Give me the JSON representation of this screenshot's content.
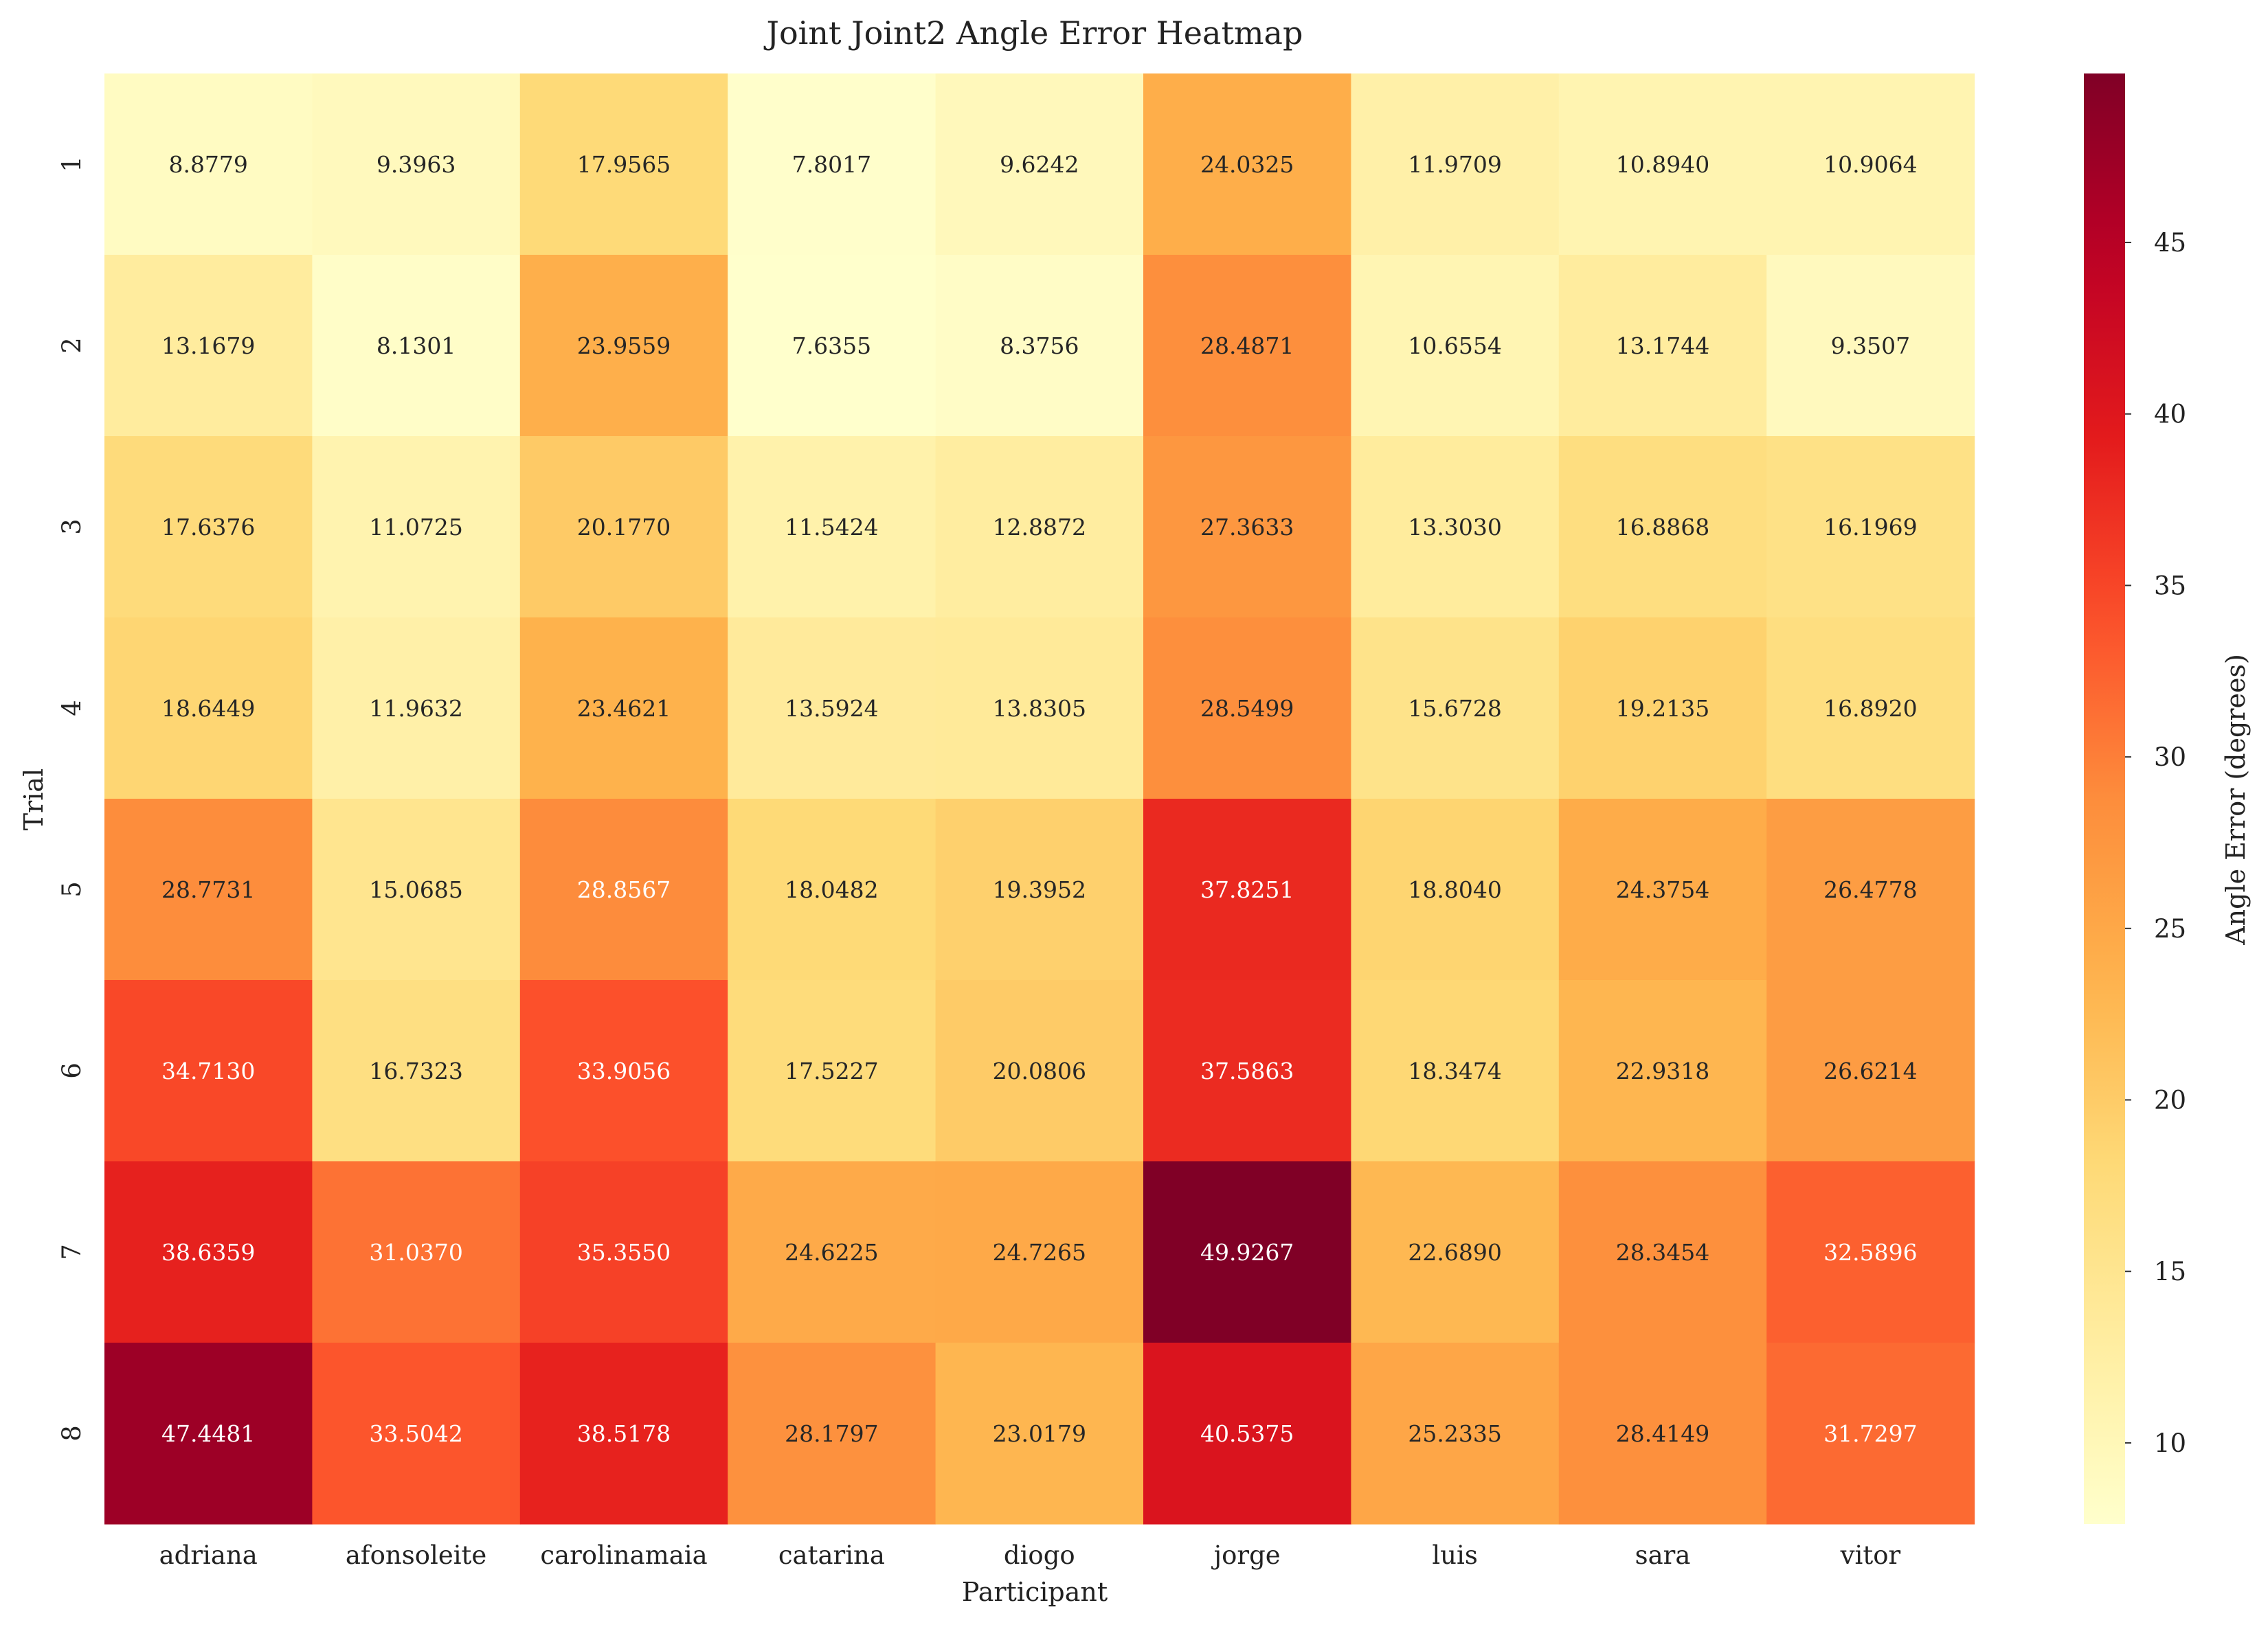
{
  "chart_data": {
    "type": "heatmap",
    "title": "Joint Joint2 Angle Error Heatmap",
    "xlabel": "Participant",
    "ylabel": "Trial",
    "colorbar_label": "Angle Error (degrees)",
    "colormap": "YlOrRd",
    "vmin": 7.6355,
    "vmax": 49.9267,
    "colorbar_ticks": [
      10,
      15,
      20,
      25,
      30,
      35,
      40,
      45
    ],
    "categories": [
      "adriana",
      "afonsoleite",
      "carolinamaia",
      "catarina",
      "diogo",
      "jorge",
      "luis",
      "sara",
      "vitor"
    ],
    "rows": [
      "1",
      "2",
      "3",
      "4",
      "5",
      "6",
      "7",
      "8"
    ],
    "values": [
      [
        8.8779,
        9.3963,
        17.9565,
        7.8017,
        9.6242,
        24.0325,
        11.9709,
        10.894,
        10.9064
      ],
      [
        13.1679,
        8.1301,
        23.9559,
        7.6355,
        8.3756,
        28.4871,
        10.6554,
        13.1744,
        9.3507
      ],
      [
        17.6376,
        11.0725,
        20.177,
        11.5424,
        12.8872,
        27.3633,
        13.303,
        16.8868,
        16.1969
      ],
      [
        18.6449,
        11.9632,
        23.4621,
        13.5924,
        13.8305,
        28.5499,
        15.6728,
        19.2135,
        16.892
      ],
      [
        28.7731,
        15.0685,
        28.8567,
        18.0482,
        19.3952,
        37.8251,
        18.804,
        24.3754,
        26.4778
      ],
      [
        34.713,
        16.7323,
        33.9056,
        17.5227,
        20.0806,
        37.5863,
        18.3474,
        22.9318,
        26.6214
      ],
      [
        38.6359,
        31.037,
        35.355,
        24.6225,
        24.7265,
        49.9267,
        22.689,
        28.3454,
        32.5896
      ],
      [
        47.4481,
        33.5042,
        38.5178,
        28.1797,
        23.0179,
        40.5375,
        25.2335,
        28.4149,
        31.7297
      ]
    ],
    "value_format": "4 decimals"
  }
}
